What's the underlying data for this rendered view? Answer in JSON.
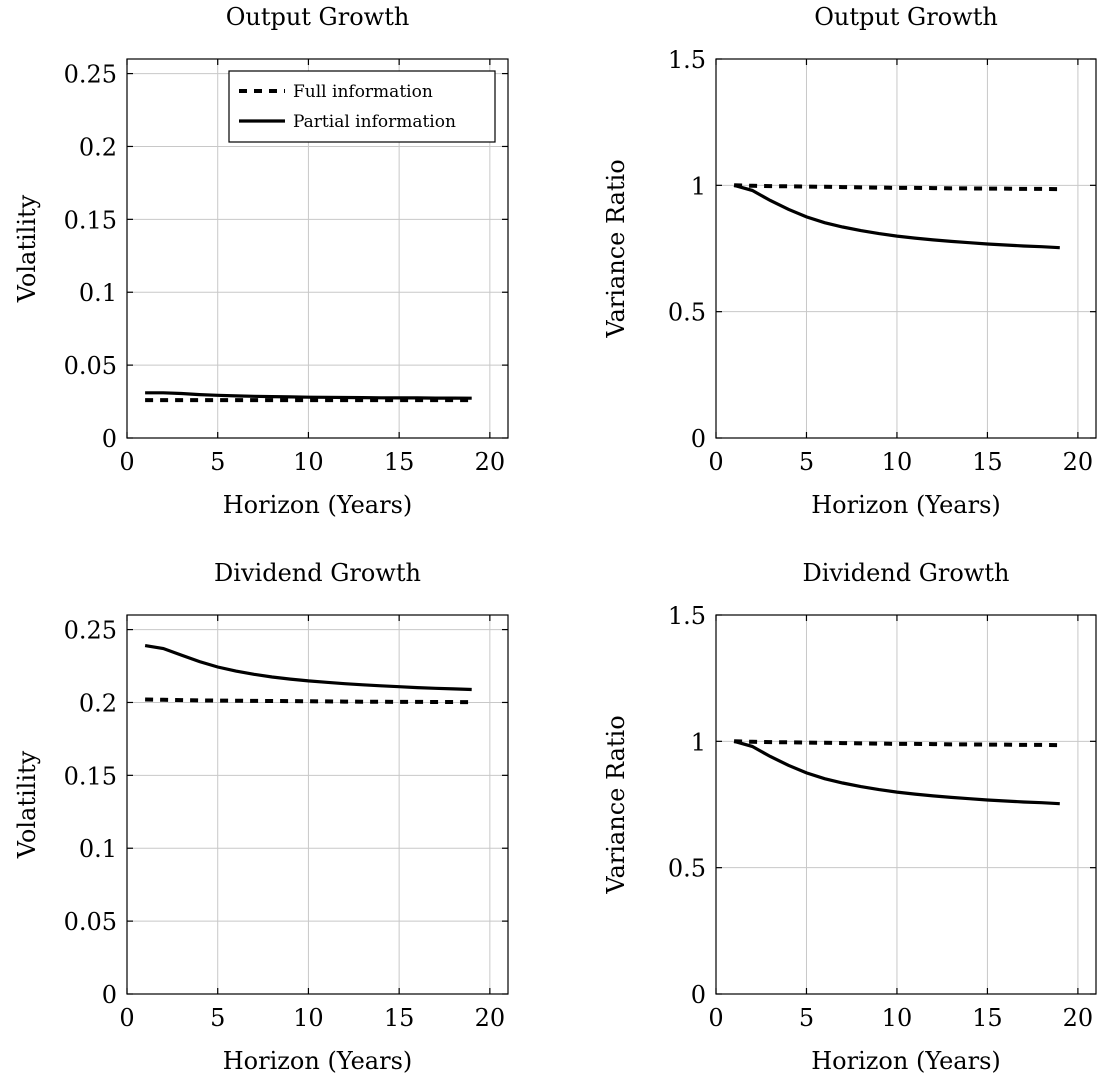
{
  "chart_data": [
    {
      "type": "line",
      "title": "Output Growth",
      "xlabel": "Horizon (Years)",
      "ylabel": "Volatility",
      "xlim": [
        0,
        21
      ],
      "ylim": [
        0,
        0.26
      ],
      "xticks": [
        0,
        5,
        10,
        15,
        20
      ],
      "yticks": [
        0,
        0.05,
        0.1,
        0.15,
        0.2,
        0.25
      ],
      "ytick_labels": [
        "0",
        "0.05",
        "0.1",
        "0.15",
        "0.2",
        "0.25"
      ],
      "grid": true,
      "legend": "top-right",
      "x": [
        1,
        2,
        3,
        4,
        5,
        6,
        7,
        8,
        9,
        10,
        11,
        12,
        13,
        14,
        15,
        16,
        17,
        18,
        19
      ],
      "series": [
        {
          "name": "Full information",
          "style": "dashed",
          "values": [
            0.026,
            0.026,
            0.026,
            0.026,
            0.026,
            0.026,
            0.026,
            0.026,
            0.026,
            0.026,
            0.026,
            0.026,
            0.026,
            0.026,
            0.026,
            0.026,
            0.026,
            0.026,
            0.026
          ]
        },
        {
          "name": "Partial information",
          "style": "solid",
          "values": [
            0.031,
            0.031,
            0.0305,
            0.0298,
            0.0293,
            0.0289,
            0.0286,
            0.0284,
            0.0282,
            0.028,
            0.0279,
            0.0278,
            0.0277,
            0.0276,
            0.0275,
            0.0275,
            0.0274,
            0.0274,
            0.0273
          ]
        }
      ]
    },
    {
      "type": "line",
      "title": "Output Growth",
      "xlabel": "Horizon (Years)",
      "ylabel": "Variance Ratio",
      "xlim": [
        0,
        21
      ],
      "ylim": [
        0,
        1.5
      ],
      "xticks": [
        0,
        5,
        10,
        15,
        20
      ],
      "yticks": [
        0,
        0.5,
        1,
        1.5
      ],
      "ytick_labels": [
        "0",
        "0.5",
        "1",
        "1.5"
      ],
      "grid": true,
      "legend": "none",
      "x": [
        1,
        2,
        3,
        4,
        5,
        6,
        7,
        8,
        9,
        10,
        11,
        12,
        13,
        14,
        15,
        16,
        17,
        18,
        19
      ],
      "series": [
        {
          "style": "dashed",
          "values": [
            1.0,
            0.998,
            0.997,
            0.996,
            0.995,
            0.994,
            0.993,
            0.992,
            0.991,
            0.99,
            0.99,
            0.989,
            0.988,
            0.988,
            0.987,
            0.987,
            0.986,
            0.986,
            0.985
          ]
        },
        {
          "style": "solid",
          "values": [
            1.0,
            0.98,
            0.94,
            0.905,
            0.875,
            0.852,
            0.835,
            0.821,
            0.809,
            0.799,
            0.791,
            0.784,
            0.778,
            0.773,
            0.768,
            0.764,
            0.76,
            0.757,
            0.753
          ]
        }
      ]
    },
    {
      "type": "line",
      "title": "Dividend Growth",
      "xlabel": "Horizon (Years)",
      "ylabel": "Volatility",
      "xlim": [
        0,
        21
      ],
      "ylim": [
        0,
        0.26
      ],
      "xticks": [
        0,
        5,
        10,
        15,
        20
      ],
      "yticks": [
        0,
        0.05,
        0.1,
        0.15,
        0.2,
        0.25
      ],
      "ytick_labels": [
        "0",
        "0.05",
        "0.1",
        "0.15",
        "0.2",
        "0.25"
      ],
      "grid": true,
      "legend": "none",
      "x": [
        1,
        2,
        3,
        4,
        5,
        6,
        7,
        8,
        9,
        10,
        11,
        12,
        13,
        14,
        15,
        16,
        17,
        18,
        19
      ],
      "series": [
        {
          "style": "dashed",
          "values": [
            0.202,
            0.2018,
            0.2016,
            0.2014,
            0.2013,
            0.2012,
            0.2011,
            0.201,
            0.2009,
            0.2008,
            0.2007,
            0.2006,
            0.2005,
            0.2005,
            0.2004,
            0.2004,
            0.2003,
            0.2003,
            0.2002
          ]
        },
        {
          "style": "solid",
          "values": [
            0.239,
            0.237,
            0.2325,
            0.228,
            0.2243,
            0.2215,
            0.2193,
            0.2175,
            0.216,
            0.2148,
            0.2138,
            0.2129,
            0.2121,
            0.2114,
            0.2108,
            0.2102,
            0.2097,
            0.2093,
            0.2089
          ]
        }
      ]
    },
    {
      "type": "line",
      "title": "Dividend Growth",
      "xlabel": "Horizon (Years)",
      "ylabel": "Variance Ratio",
      "xlim": [
        0,
        21
      ],
      "ylim": [
        0,
        1.5
      ],
      "xticks": [
        0,
        5,
        10,
        15,
        20
      ],
      "yticks": [
        0,
        0.5,
        1,
        1.5
      ],
      "ytick_labels": [
        "0",
        "0.5",
        "1",
        "1.5"
      ],
      "grid": true,
      "legend": "none",
      "x": [
        1,
        2,
        3,
        4,
        5,
        6,
        7,
        8,
        9,
        10,
        11,
        12,
        13,
        14,
        15,
        16,
        17,
        18,
        19
      ],
      "series": [
        {
          "style": "dashed",
          "values": [
            1.0,
            0.998,
            0.997,
            0.996,
            0.995,
            0.994,
            0.993,
            0.992,
            0.991,
            0.99,
            0.99,
            0.989,
            0.988,
            0.988,
            0.987,
            0.987,
            0.986,
            0.986,
            0.985
          ]
        },
        {
          "style": "solid",
          "values": [
            1.0,
            0.98,
            0.94,
            0.905,
            0.875,
            0.852,
            0.835,
            0.821,
            0.809,
            0.799,
            0.791,
            0.784,
            0.778,
            0.773,
            0.768,
            0.764,
            0.76,
            0.757,
            0.753
          ]
        }
      ]
    }
  ]
}
